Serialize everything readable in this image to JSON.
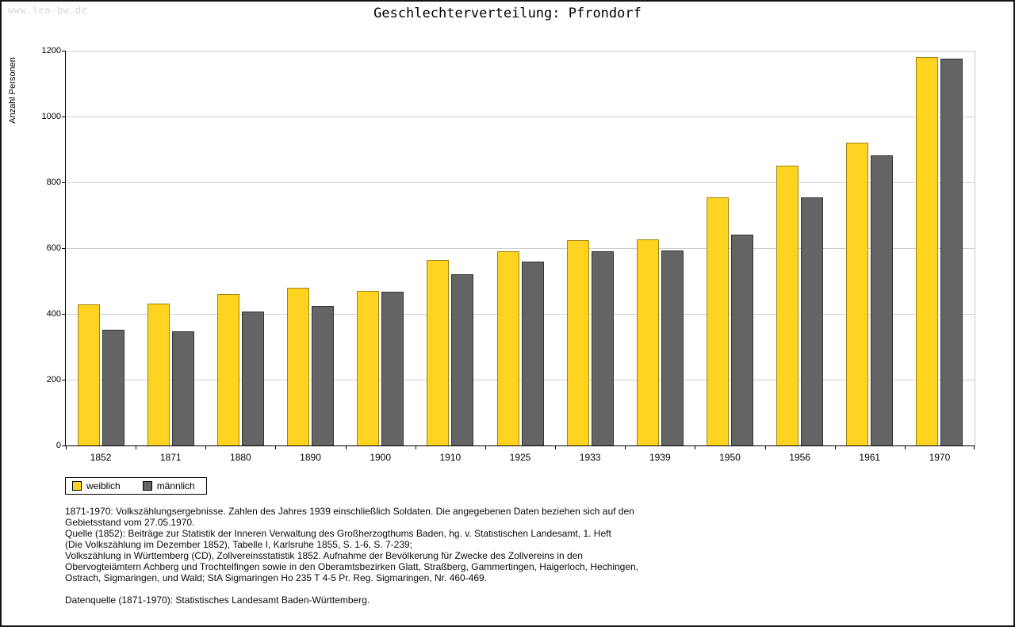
{
  "page": {
    "watermark": "www.leo-bw.de"
  },
  "chart_data": {
    "type": "bar",
    "title": "Geschlechterverteilung: Pfrondorf",
    "xlabel": "",
    "ylabel": "Anzahl Personen",
    "ylim": [
      0,
      1200
    ],
    "yticks": [
      0,
      200,
      400,
      600,
      800,
      1000,
      1200
    ],
    "grid": true,
    "legend_position": "bottom-left",
    "categories": [
      "1852",
      "1871",
      "1880",
      "1890",
      "1900",
      "1910",
      "1925",
      "1933",
      "1939",
      "1950",
      "1956",
      "1961",
      "1970"
    ],
    "series": [
      {
        "name": "weiblich",
        "color": "#ffd320",
        "border_color": "#9c8410",
        "values": [
          430,
          432,
          460,
          480,
          470,
          565,
          590,
          625,
          627,
          755,
          850,
          920,
          1180
        ]
      },
      {
        "name": "männlich",
        "color": "#646464",
        "border_color": "#333333",
        "values": [
          353,
          348,
          408,
          425,
          468,
          520,
          560,
          590,
          592,
          640,
          755,
          883,
          1175
        ]
      }
    ]
  },
  "footnotes": {
    "lines": [
      "1871-1970: Volkszählungsergebnisse. Zahlen des Jahres 1939 einschließlich Soldaten. Die angegebenen Daten beziehen sich auf den",
      "Gebietsstand vom 27.05.1970.",
      "Quelle (1852): Beiträge zur Statistik der Inneren Verwaltung des Großherzogthums Baden, hg. v. Statistischen Landesamt, 1. Heft",
      "(Die Volkszählung im Dezember 1852), Tabelle I, Karlsruhe 1855, S. 1-6, S. 7-239;",
      "Volkszählung in Württemberg (CD), Zollvereinsstatistik 1852. Aufnahme der Bevölkerung für Zwecke des Zollvereins in den",
      "Obervogteiämtern Achberg und Trochtelfingen sowie in den Oberamtsbezirken Glatt, Straßberg, Gammertingen, Haigerloch, Hechingen,",
      "Ostrach, Sigmaringen, und Wald; StA Sigmaringen Ho 235 T 4-5 Pr. Reg. Sigmaringen, Nr. 460-469.",
      "",
      "Datenquelle (1871-1970): Statistisches Landesamt Baden-Württemberg."
    ]
  }
}
